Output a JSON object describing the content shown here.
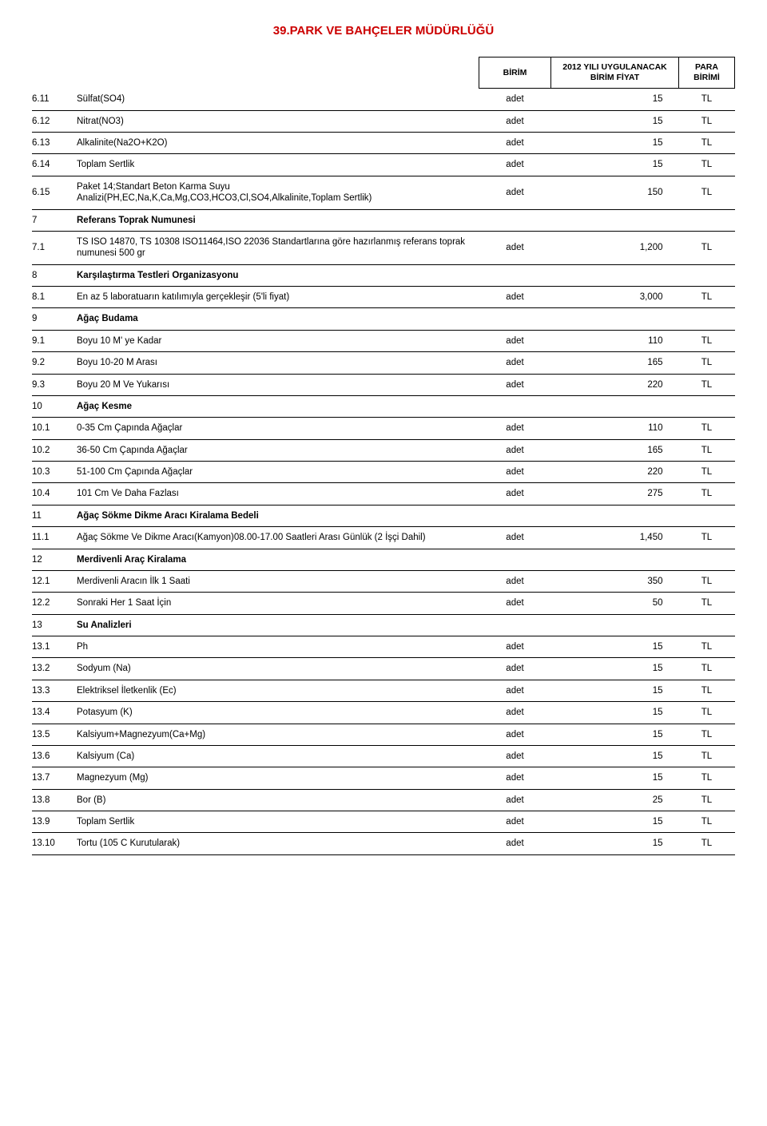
{
  "title": "39.PARK VE BAHÇELER MÜDÜRLÜĞÜ",
  "title_color": "#cc0000",
  "headers": {
    "unit": "BİRİM",
    "price": "2012 YILI UYGULANACAK BİRİM FİYAT",
    "currency": "PARA BİRİMİ"
  },
  "rows": [
    {
      "code": "6.11",
      "desc": "Sülfat(SO4)",
      "unit": "adet",
      "price": "15",
      "curr": "TL",
      "section": false
    },
    {
      "code": "6.12",
      "desc": "Nitrat(NO3)",
      "unit": "adet",
      "price": "15",
      "curr": "TL",
      "section": false
    },
    {
      "code": "6.13",
      "desc": "Alkalinite(Na2O+K2O)",
      "unit": "adet",
      "price": "15",
      "curr": "TL",
      "section": false
    },
    {
      "code": "6.14",
      "desc": "Toplam Sertlik",
      "unit": "adet",
      "price": "15",
      "curr": "TL",
      "section": false
    },
    {
      "code": "6.15",
      "desc": "Paket 14;Standart Beton Karma Suyu Analizi(PH,EC,Na,K,Ca,Mg,CO3,HCO3,Cl,SO4,Alkalinite,Toplam Sertlik)",
      "unit": "adet",
      "price": "150",
      "curr": "TL",
      "section": false
    },
    {
      "code": "7",
      "desc": "Referans Toprak Numunesi",
      "unit": "",
      "price": "",
      "curr": "",
      "section": true
    },
    {
      "code": "7.1",
      "desc": "TS ISO 14870, TS 10308 ISO11464,ISO 22036 Standartlarına göre hazırlanmış referans toprak numunesi 500 gr",
      "unit": "adet",
      "price": "1,200",
      "curr": "TL",
      "section": false
    },
    {
      "code": "8",
      "desc": "Karşılaştırma Testleri Organizasyonu",
      "unit": "",
      "price": "",
      "curr": "",
      "section": true
    },
    {
      "code": "8.1",
      "desc": "En az 5 laboratuarın katılımıyla gerçekleşir (5'li fiyat)",
      "unit": "adet",
      "price": "3,000",
      "curr": "TL",
      "section": false
    },
    {
      "code": "9",
      "desc": "Ağaç Budama",
      "unit": "",
      "price": "",
      "curr": "",
      "section": true
    },
    {
      "code": "9.1",
      "desc": "Boyu 10 M' ye Kadar",
      "unit": "adet",
      "price": "110",
      "curr": "TL",
      "section": false
    },
    {
      "code": "9.2",
      "desc": "Boyu 10-20 M Arası",
      "unit": "adet",
      "price": "165",
      "curr": "TL",
      "section": false
    },
    {
      "code": "9.3",
      "desc": "Boyu 20 M Ve Yukarısı",
      "unit": "adet",
      "price": "220",
      "curr": "TL",
      "section": false
    },
    {
      "code": "10",
      "desc": "Ağaç Kesme",
      "unit": "",
      "price": "",
      "curr": "",
      "section": true
    },
    {
      "code": "10.1",
      "desc": "0-35 Cm Çapında Ağaçlar",
      "unit": "adet",
      "price": "110",
      "curr": "TL",
      "section": false
    },
    {
      "code": "10.2",
      "desc": "36-50 Cm Çapında Ağaçlar",
      "unit": "adet",
      "price": "165",
      "curr": "TL",
      "section": false
    },
    {
      "code": "10.3",
      "desc": "51-100 Cm Çapında Ağaçlar",
      "unit": "adet",
      "price": "220",
      "curr": "TL",
      "section": false
    },
    {
      "code": "10.4",
      "desc": "101 Cm Ve Daha Fazlası",
      "unit": "adet",
      "price": "275",
      "curr": "TL",
      "section": false
    },
    {
      "code": "11",
      "desc": "Ağaç Sökme Dikme Aracı Kiralama Bedeli",
      "unit": "",
      "price": "",
      "curr": "",
      "section": true
    },
    {
      "code": "11.1",
      "desc": "Ağaç Sökme Ve Dikme Aracı(Kamyon)08.00-17.00 Saatleri Arası Günlük (2 İşçi Dahil)",
      "unit": "adet",
      "price": "1,450",
      "curr": "TL",
      "section": false
    },
    {
      "code": "12",
      "desc": "Merdivenli Araç Kiralama",
      "unit": "",
      "price": "",
      "curr": "",
      "section": true
    },
    {
      "code": "12.1",
      "desc": "Merdivenli Aracın İlk 1 Saati",
      "unit": "adet",
      "price": "350",
      "curr": "TL",
      "section": false
    },
    {
      "code": "12.2",
      "desc": "Sonraki Her 1 Saat İçin",
      "unit": "adet",
      "price": "50",
      "curr": "TL",
      "section": false
    },
    {
      "code": "13",
      "desc": "Su Analizleri",
      "unit": "",
      "price": "",
      "curr": "",
      "section": true
    },
    {
      "code": "13.1",
      "desc": "Ph",
      "unit": "adet",
      "price": "15",
      "curr": "TL",
      "section": false
    },
    {
      "code": "13.2",
      "desc": "Sodyum (Na)",
      "unit": "adet",
      "price": "15",
      "curr": "TL",
      "section": false
    },
    {
      "code": "13.3",
      "desc": "Elektriksel İletkenlik (Ec)",
      "unit": "adet",
      "price": "15",
      "curr": "TL",
      "section": false
    },
    {
      "code": "13.4",
      "desc": "Potasyum (K)",
      "unit": "adet",
      "price": "15",
      "curr": "TL",
      "section": false
    },
    {
      "code": "13.5",
      "desc": "Kalsiyum+Magnezyum(Ca+Mg)",
      "unit": "adet",
      "price": "15",
      "curr": "TL",
      "section": false
    },
    {
      "code": "13.6",
      "desc": "Kalsiyum (Ca)",
      "unit": "adet",
      "price": "15",
      "curr": "TL",
      "section": false
    },
    {
      "code": "13.7",
      "desc": "Magnezyum (Mg)",
      "unit": "adet",
      "price": "15",
      "curr": "TL",
      "section": false
    },
    {
      "code": "13.8",
      "desc": "Bor (B)",
      "unit": "adet",
      "price": "25",
      "curr": "TL",
      "section": false
    },
    {
      "code": "13.9",
      "desc": "Toplam Sertlik",
      "unit": "adet",
      "price": "15",
      "curr": "TL",
      "section": false
    },
    {
      "code": "13.10",
      "desc": "Tortu (105 C Kurutularak)",
      "unit": "adet",
      "price": "15",
      "curr": "TL",
      "section": false
    }
  ]
}
